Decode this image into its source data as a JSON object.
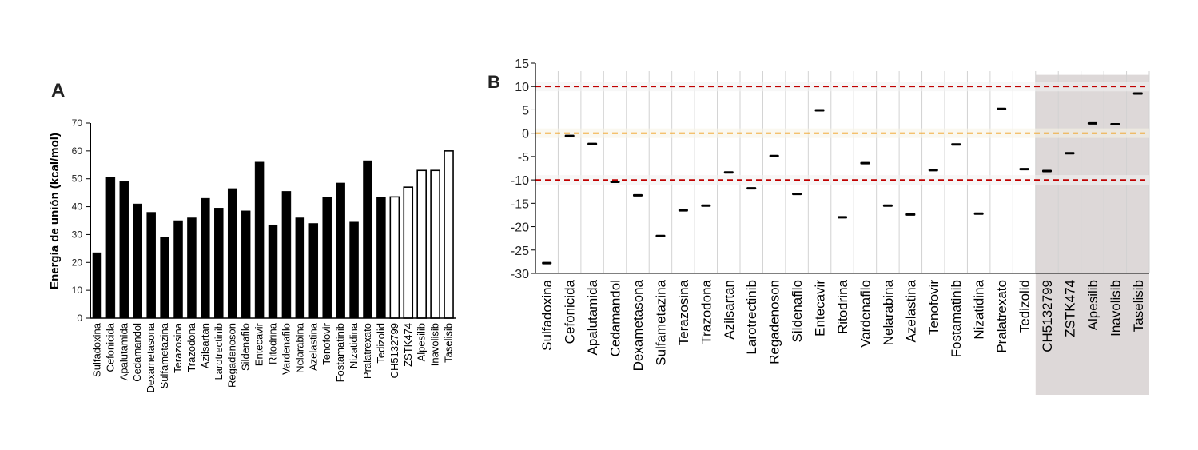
{
  "panels": {
    "a_label": "A",
    "b_label": "B"
  },
  "chart_data": [
    {
      "type": "bar",
      "panel": "A",
      "title": "",
      "xlabel": "",
      "ylabel": "Energía de unión (kcal/mol)",
      "ylim": [
        0,
        70
      ],
      "yticks": [
        0,
        10,
        20,
        30,
        40,
        50,
        60,
        70
      ],
      "grid": false,
      "categories": [
        "Sulfadoxina",
        "Cefonicida",
        "Apalutamida",
        "Cedamandol",
        "Dexametasona",
        "Sulfametazina",
        "Terazosina",
        "Trazodona",
        "Azilsartan",
        "Larotrectinib",
        "Regadenoson",
        "Sildenafilo",
        "Entecavir",
        "Ritodrina",
        "Vardenafilo",
        "Nelarabina",
        "Azelastina",
        "Tenofovir",
        "Fostamatinib",
        "Nizatidina",
        "Pralatrexato",
        "Tedizolid",
        "CH5132799",
        "ZSTK474",
        "Alpesilib",
        "Inavolisib",
        "Taselisib"
      ],
      "values": [
        23.5,
        50.5,
        49,
        41,
        38,
        29,
        35,
        36,
        43,
        39.5,
        46.5,
        38.5,
        56,
        33.5,
        45.5,
        36,
        34,
        43.5,
        48.5,
        34.5,
        56.5,
        43.5,
        43.5,
        47,
        53,
        53,
        60
      ],
      "fill": [
        "black",
        "black",
        "black",
        "black",
        "black",
        "black",
        "black",
        "black",
        "black",
        "black",
        "black",
        "black",
        "black",
        "black",
        "black",
        "black",
        "black",
        "black",
        "black",
        "black",
        "black",
        "black",
        "white",
        "white",
        "white",
        "white",
        "white"
      ],
      "colors": {
        "filled": "#000000",
        "open": "#ffffff",
        "outline": "#000000"
      }
    },
    {
      "type": "scatter",
      "panel": "B",
      "title": "",
      "xlabel": "",
      "ylabel": "",
      "ylim": [
        -30,
        15
      ],
      "yticks": [
        15,
        10,
        5,
        0,
        -5,
        -10,
        -15,
        -20,
        -25,
        -30
      ],
      "grid": true,
      "categories": [
        "Sulfadoxina",
        "Cefonicida",
        "Apalutamida",
        "Cedamandol",
        "Dexametasona",
        "Sulfametazina",
        "Terazosina",
        "Trazodona",
        "Azilsartan",
        "Larotrectinib",
        "Regadenoson",
        "Sildenafilo",
        "Entecavir",
        "Ritodrina",
        "Vardenafilo",
        "Nelarabina",
        "Azelastina",
        "Tenofovir",
        "Fostamatinib",
        "Nizatidina",
        "Pralatrexato",
        "Tedizolid",
        "CH5132799",
        "ZSTK474",
        "Alpesilib",
        "Inavolisib",
        "Taselisib"
      ],
      "values": [
        -27.8,
        -0.6,
        -2.3,
        -10.4,
        -13.3,
        -22,
        -16.5,
        -15.5,
        -8.4,
        -11.8,
        -4.9,
        -13,
        4.9,
        -18,
        -6.4,
        -15.5,
        -17.4,
        -7.9,
        -2.4,
        -17.2,
        5.2,
        -7.7,
        -8.1,
        -4.3,
        2.1,
        1.9,
        8.5
      ],
      "reference_lines": [
        {
          "y": 10,
          "color": "#c00000",
          "style": "dashed"
        },
        {
          "y": 0,
          "color": "#f0a020",
          "style": "dashed"
        },
        {
          "y": -10,
          "color": "#c00000",
          "style": "dashed"
        }
      ],
      "highlighted_categories": [
        "CH5132799",
        "ZSTK474",
        "Alpesilib",
        "Inavolisib",
        "Taselisib"
      ],
      "colors": {
        "highlight": "#ddd8d8",
        "marker": "#000000"
      }
    }
  ]
}
